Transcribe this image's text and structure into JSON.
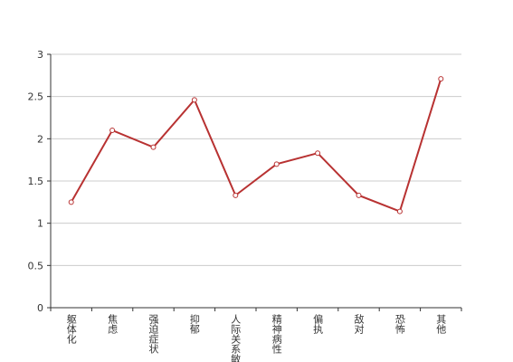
{
  "chart_data": {
    "type": "line",
    "categories": [
      "躯体化",
      "焦虑",
      "强迫症状",
      "抑郁",
      "人际关系敏感",
      "精神病性",
      "偏执",
      "敌对",
      "恐怖",
      "其他"
    ],
    "values": [
      1.25,
      2.1,
      1.9,
      2.46,
      1.33,
      1.7,
      1.83,
      1.33,
      1.14,
      2.71
    ],
    "color": "#b83232",
    "ylim": [
      0,
      3
    ],
    "yticks": [
      0,
      0.5,
      1,
      1.5,
      2,
      2.5,
      3
    ],
    "grid": true
  }
}
